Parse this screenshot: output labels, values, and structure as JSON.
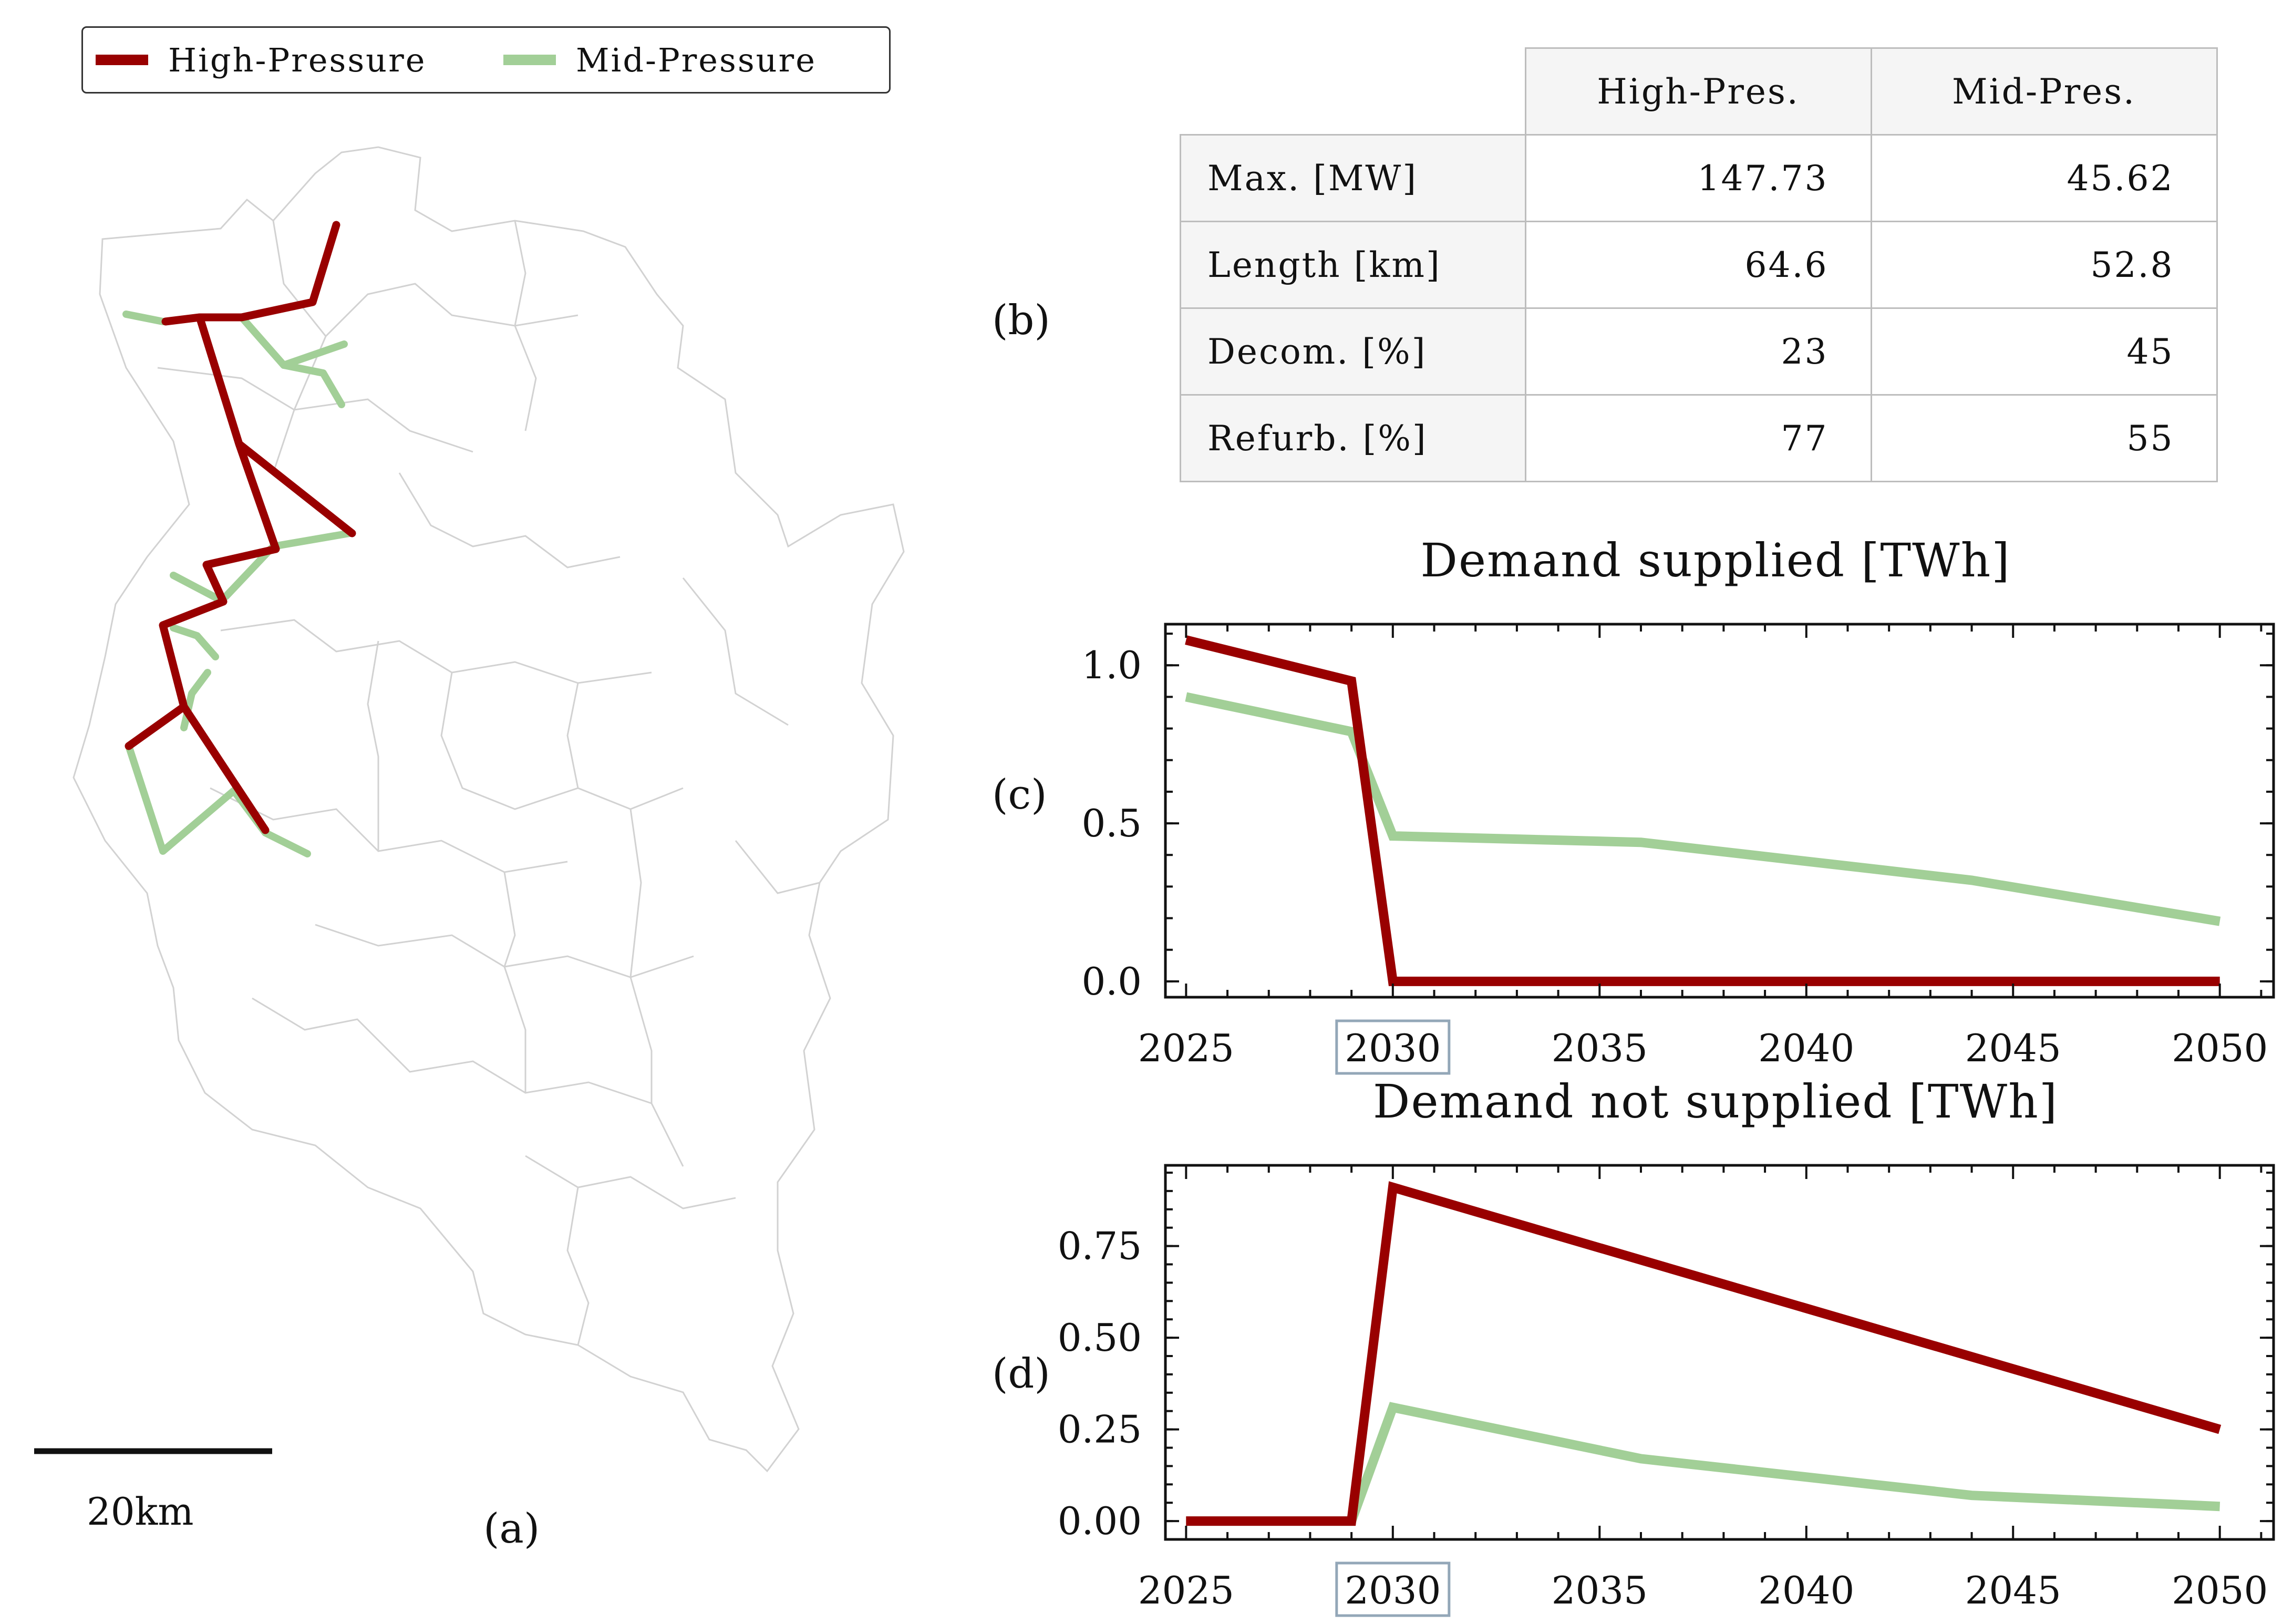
{
  "legend": {
    "items": [
      {
        "label": "High-Pressure",
        "color": "#990000"
      },
      {
        "label": "Mid-Pressure",
        "color": "#a2cf97"
      }
    ]
  },
  "panels": {
    "a": "(a)",
    "b": "(b)",
    "c": "(c)",
    "d": "(d)"
  },
  "map": {
    "scale_label": "20km"
  },
  "table": {
    "columns": [
      "High-Pres.",
      "Mid-Pres."
    ],
    "rows": [
      {
        "label": "Max. [MW]",
        "values": [
          "147.73",
          "45.62"
        ]
      },
      {
        "label": "Length [km]",
        "values": [
          "64.6",
          "52.8"
        ]
      },
      {
        "label": "Decom. [%]",
        "values": [
          "23",
          "45"
        ]
      },
      {
        "label": "Refurb. [%]",
        "values": [
          "77",
          "55"
        ]
      }
    ]
  },
  "chart_data": [
    {
      "type": "line",
      "title": "Demand supplied [TWh]",
      "xlim": [
        2024.5,
        2051.3
      ],
      "ylim": [
        -0.05,
        1.13
      ],
      "xticks": [
        "2025",
        "2030",
        "2035",
        "2040",
        "2045",
        "2050"
      ],
      "yticks": [
        "0.0",
        "0.5",
        "1.0"
      ],
      "highlighted_xtick": "2030",
      "series": [
        {
          "name": "High-Pressure",
          "color": "#990000",
          "x": [
            2025,
            2029,
            2030,
            2050
          ],
          "y": [
            1.08,
            0.95,
            0.0,
            0.0
          ]
        },
        {
          "name": "Mid-Pressure",
          "color": "#a2cf97",
          "x": [
            2025,
            2029,
            2030,
            2036,
            2044,
            2050
          ],
          "y": [
            0.9,
            0.79,
            0.46,
            0.44,
            0.32,
            0.19
          ]
        }
      ]
    },
    {
      "type": "line",
      "title": "Demand not supplied [TWh]",
      "xlim": [
        2024.5,
        2051.3
      ],
      "ylim": [
        -0.05,
        0.97
      ],
      "xticks": [
        "2025",
        "2030",
        "2035",
        "2040",
        "2045",
        "2050"
      ],
      "yticks": [
        "0.00",
        "0.25",
        "0.50",
        "0.75"
      ],
      "highlighted_xtick": "2030",
      "series": [
        {
          "name": "High-Pressure",
          "color": "#990000",
          "x": [
            2025,
            2029,
            2030,
            2050
          ],
          "y": [
            0.0,
            0.0,
            0.91,
            0.25
          ]
        },
        {
          "name": "Mid-Pressure",
          "color": "#a2cf97",
          "x": [
            2025,
            2029,
            2030,
            2036,
            2044,
            2050
          ],
          "y": [
            0.0,
            0.0,
            0.31,
            0.17,
            0.07,
            0.04
          ]
        }
      ]
    }
  ]
}
